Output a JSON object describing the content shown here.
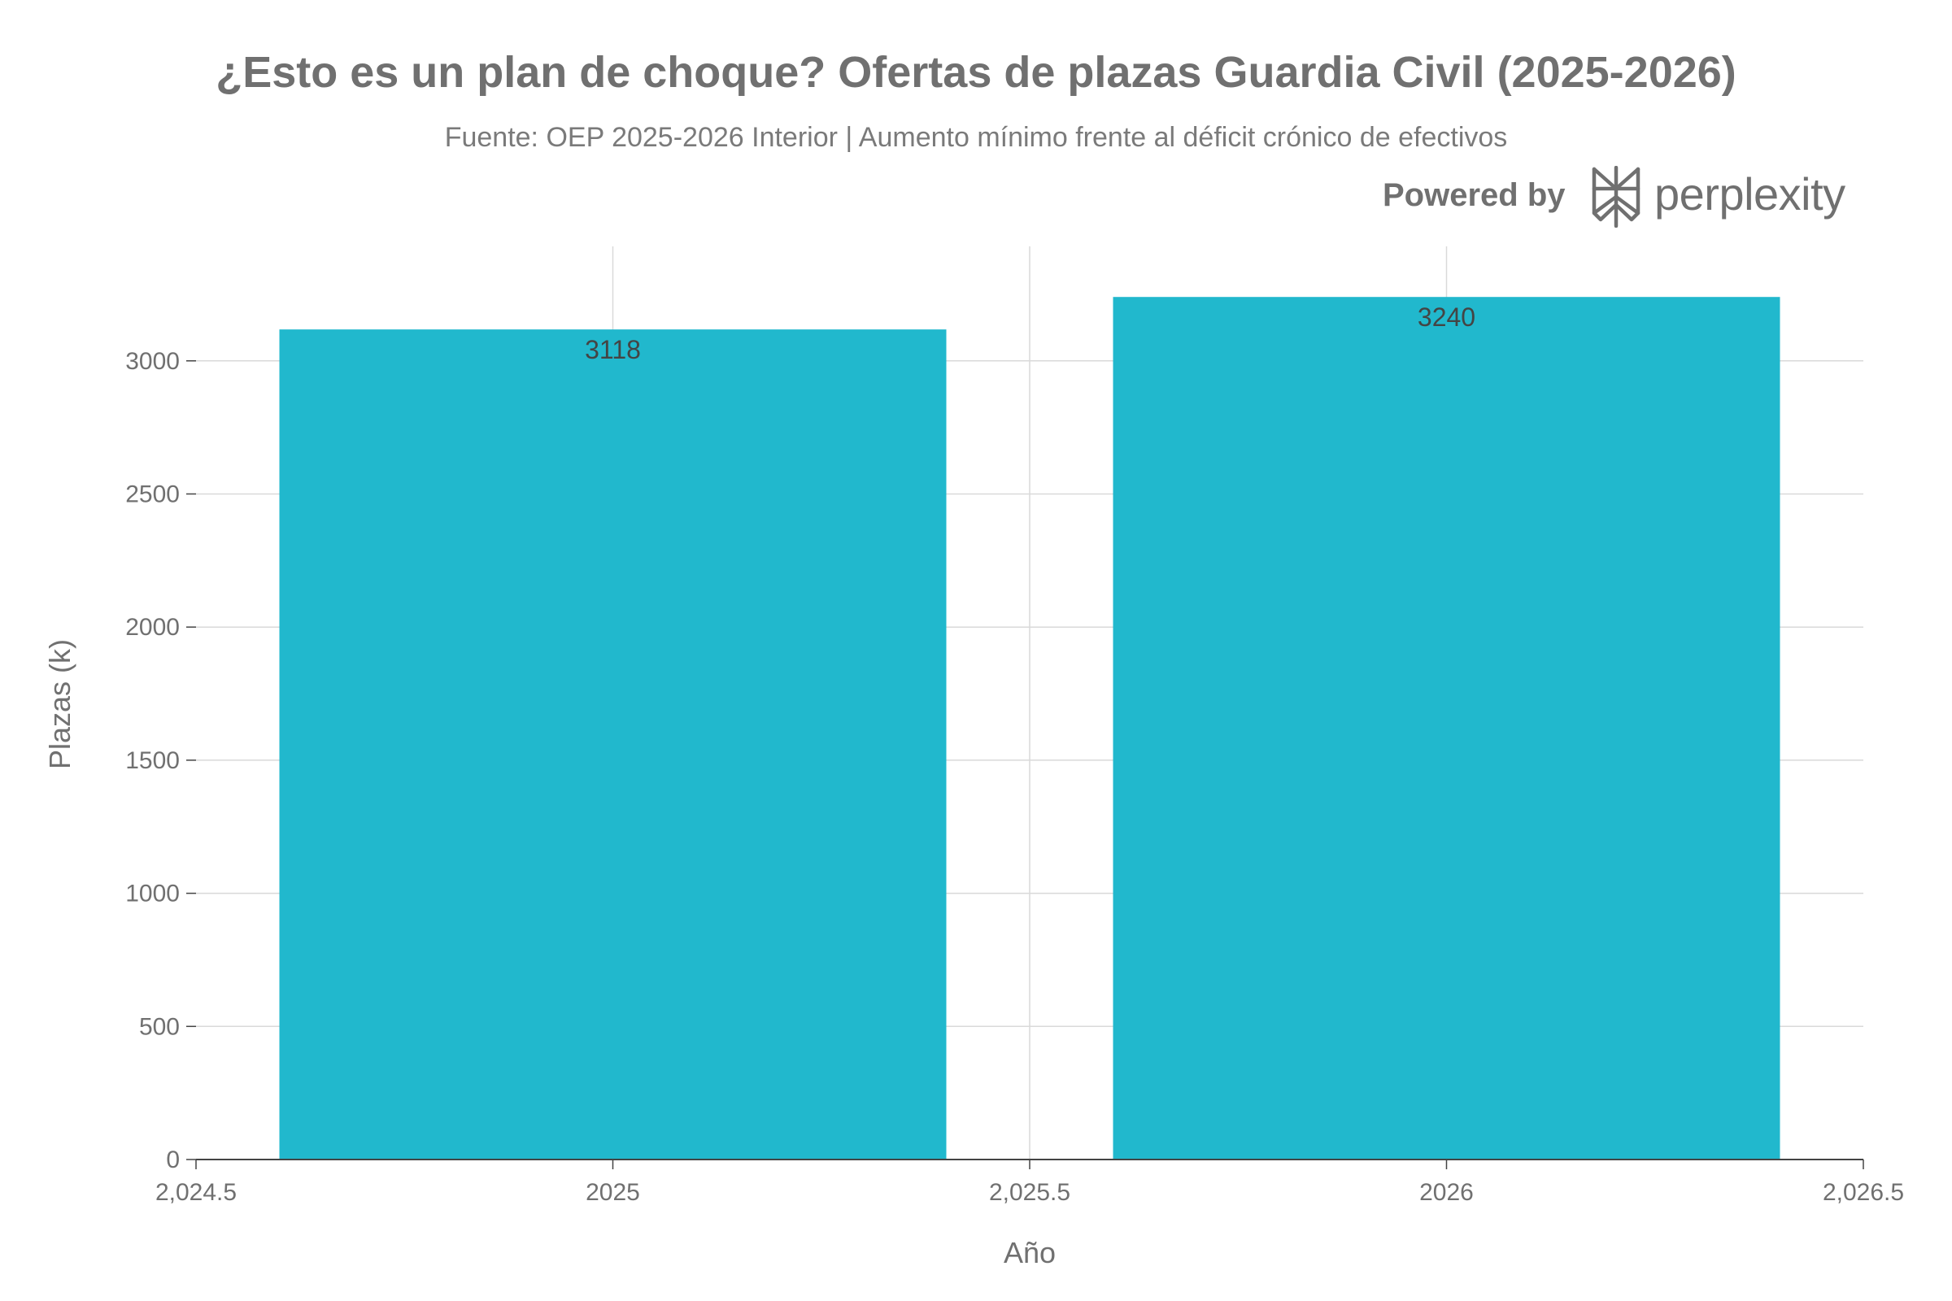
{
  "chart_data": {
    "type": "bar",
    "title": "¿Esto es un plan de choque? Ofertas de plazas Guardia Civil (2025-2026)",
    "subtitle": "Fuente: OEP 2025-2026 Interior | Aumento mínimo frente al déficit crónico de efectivos",
    "xlabel": "Año",
    "ylabel": "Plazas (k)",
    "x": [
      2025,
      2026
    ],
    "values": [
      3118,
      3240
    ],
    "data_labels": [
      "3118",
      "3240"
    ],
    "xlim": [
      2024.5,
      2026.5
    ],
    "ylim": [
      0,
      3430
    ],
    "x_ticks": [
      {
        "value": 2024.5,
        "label": "2,024.5"
      },
      {
        "value": 2025,
        "label": "2025"
      },
      {
        "value": 2025.5,
        "label": "2,025.5"
      },
      {
        "value": 2026,
        "label": "2026"
      },
      {
        "value": 2026.5,
        "label": "2,026.5"
      }
    ],
    "y_ticks": [
      {
        "value": 0,
        "label": "0"
      },
      {
        "value": 500,
        "label": "500"
      },
      {
        "value": 1000,
        "label": "1000"
      },
      {
        "value": 1500,
        "label": "1500"
      },
      {
        "value": 2000,
        "label": "2000"
      },
      {
        "value": 2500,
        "label": "2500"
      },
      {
        "value": 3000,
        "label": "3000"
      }
    ],
    "bar_width": 0.8,
    "bar_color": "#21B8CD",
    "grid": true
  },
  "branding": {
    "powered_label": "Powered by",
    "name": "perplexity",
    "logo_icon": "perplexity-logo-icon"
  }
}
